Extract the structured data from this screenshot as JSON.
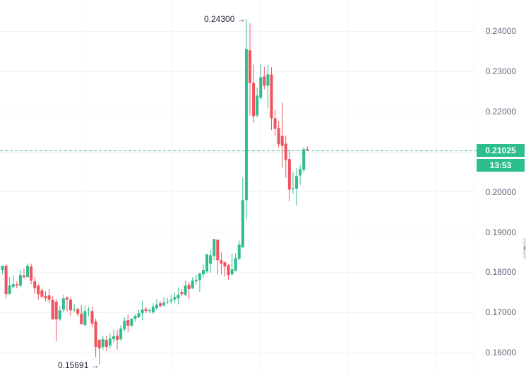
{
  "chart_data": {
    "type": "candlestick",
    "title": "",
    "xlabel": "",
    "ylabel": "",
    "ylim": [
      0.1547,
      0.2474
    ],
    "grid": true,
    "colors": {
      "up": "#2ebd8e",
      "down": "#f0525e",
      "grid": "#f2f3f5",
      "last_price_line": "#2ebd8e",
      "axis_text": "#5d6677"
    },
    "y_ticks": [
      0.24,
      0.23,
      0.22,
      0.2,
      0.19,
      0.18,
      0.17,
      0.16
    ],
    "y_tick_labels": [
      "0.24000",
      "0.23000",
      "0.22000",
      "0.20000",
      "0.19000",
      "0.18000",
      "0.17000",
      "0.16000"
    ],
    "annotations": {
      "high": {
        "label": "0.24300",
        "value": 0.243
      },
      "low": {
        "label": "0.15691",
        "value": 0.15691
      }
    },
    "last_price": {
      "label": "0.21025",
      "value": 0.21025,
      "countdown": "13:53"
    },
    "candles": [
      {
        "o": 0.18053,
        "h": 0.18158,
        "l": 0.17947,
        "c": 0.18158
      },
      {
        "o": 0.18158,
        "h": 0.18193,
        "l": 0.1735,
        "c": 0.17455
      },
      {
        "o": 0.17455,
        "h": 0.17877,
        "l": 0.17455,
        "c": 0.17666
      },
      {
        "o": 0.17631,
        "h": 0.17912,
        "l": 0.17596,
        "c": 0.17701
      },
      {
        "o": 0.17701,
        "h": 0.17771,
        "l": 0.17596,
        "c": 0.17666
      },
      {
        "o": 0.17666,
        "h": 0.18053,
        "l": 0.17631,
        "c": 0.1793
      },
      {
        "o": 0.17912,
        "h": 0.18088,
        "l": 0.17842,
        "c": 0.17877
      },
      {
        "o": 0.17877,
        "h": 0.18211,
        "l": 0.17877,
        "c": 0.18158
      },
      {
        "o": 0.18141,
        "h": 0.18211,
        "l": 0.17701,
        "c": 0.17789
      },
      {
        "o": 0.17771,
        "h": 0.17877,
        "l": 0.17455,
        "c": 0.17596
      },
      {
        "o": 0.17666,
        "h": 0.17701,
        "l": 0.17314,
        "c": 0.17455
      },
      {
        "o": 0.17543,
        "h": 0.17596,
        "l": 0.17384,
        "c": 0.17384
      },
      {
        "o": 0.17402,
        "h": 0.17525,
        "l": 0.17279,
        "c": 0.17349
      },
      {
        "o": 0.1742,
        "h": 0.17578,
        "l": 0.17226,
        "c": 0.17314
      },
      {
        "o": 0.17314,
        "h": 0.17402,
        "l": 0.16824,
        "c": 0.16824
      },
      {
        "o": 0.17262,
        "h": 0.17332,
        "l": 0.16279,
        "c": 0.16824
      },
      {
        "o": 0.16824,
        "h": 0.17156,
        "l": 0.16789,
        "c": 0.17051
      },
      {
        "o": 0.17068,
        "h": 0.17437,
        "l": 0.16998,
        "c": 0.17349
      },
      {
        "o": 0.17367,
        "h": 0.17402,
        "l": 0.17033,
        "c": 0.17314
      },
      {
        "o": 0.17314,
        "h": 0.17367,
        "l": 0.16911,
        "c": 0.17051
      },
      {
        "o": 0.17051,
        "h": 0.17209,
        "l": 0.16998,
        "c": 0.17068
      },
      {
        "o": 0.17086,
        "h": 0.17104,
        "l": 0.16894,
        "c": 0.16965
      },
      {
        "o": 0.16965,
        "h": 0.17174,
        "l": 0.16719,
        "c": 0.16701
      },
      {
        "o": 0.16684,
        "h": 0.17174,
        "l": 0.16649,
        "c": 0.17033
      },
      {
        "o": 0.17051,
        "h": 0.17139,
        "l": 0.16912,
        "c": 0.17068
      },
      {
        "o": 0.17033,
        "h": 0.17139,
        "l": 0.16631,
        "c": 0.16719
      },
      {
        "o": 0.16771,
        "h": 0.16842,
        "l": 0.15886,
        "c": 0.16139
      },
      {
        "o": 0.16315,
        "h": 0.16349,
        "l": 0.15691,
        "c": 0.16104
      },
      {
        "o": 0.16139,
        "h": 0.1642,
        "l": 0.16068,
        "c": 0.16332
      },
      {
        "o": 0.16315,
        "h": 0.1642,
        "l": 0.16033,
        "c": 0.16139
      },
      {
        "o": 0.16174,
        "h": 0.16473,
        "l": 0.16104,
        "c": 0.16349
      },
      {
        "o": 0.16332,
        "h": 0.16578,
        "l": 0.16244,
        "c": 0.16402
      },
      {
        "o": 0.1642,
        "h": 0.1656,
        "l": 0.16068,
        "c": 0.16315
      },
      {
        "o": 0.16332,
        "h": 0.16684,
        "l": 0.1628,
        "c": 0.16596
      },
      {
        "o": 0.16578,
        "h": 0.16877,
        "l": 0.16526,
        "c": 0.16789
      },
      {
        "o": 0.16807,
        "h": 0.16947,
        "l": 0.16508,
        "c": 0.16666
      },
      {
        "o": 0.16666,
        "h": 0.16842,
        "l": 0.16631,
        "c": 0.16842
      },
      {
        "o": 0.16842,
        "h": 0.16947,
        "l": 0.16772,
        "c": 0.16912
      },
      {
        "o": 0.16877,
        "h": 0.17068,
        "l": 0.16859,
        "c": 0.16982
      },
      {
        "o": 0.16982,
        "h": 0.17279,
        "l": 0.16807,
        "c": 0.17068
      },
      {
        "o": 0.17086,
        "h": 0.17139,
        "l": 0.16982,
        "c": 0.17033
      },
      {
        "o": 0.17033,
        "h": 0.17104,
        "l": 0.16982,
        "c": 0.17051
      },
      {
        "o": 0.16998,
        "h": 0.17226,
        "l": 0.16965,
        "c": 0.17139
      },
      {
        "o": 0.17104,
        "h": 0.17332,
        "l": 0.17051,
        "c": 0.17191
      },
      {
        "o": 0.17226,
        "h": 0.17279,
        "l": 0.17121,
        "c": 0.17156
      },
      {
        "o": 0.17174,
        "h": 0.17367,
        "l": 0.17139,
        "c": 0.17244
      },
      {
        "o": 0.17262,
        "h": 0.17367,
        "l": 0.17209,
        "c": 0.17262
      },
      {
        "o": 0.17279,
        "h": 0.17437,
        "l": 0.17209,
        "c": 0.17314
      },
      {
        "o": 0.17314,
        "h": 0.1749,
        "l": 0.17226,
        "c": 0.17384
      },
      {
        "o": 0.17349,
        "h": 0.17613,
        "l": 0.17191,
        "c": 0.17437
      },
      {
        "o": 0.17508,
        "h": 0.17578,
        "l": 0.17402,
        "c": 0.17455
      },
      {
        "o": 0.17437,
        "h": 0.17789,
        "l": 0.17402,
        "c": 0.17666
      },
      {
        "o": 0.17684,
        "h": 0.17754,
        "l": 0.17332,
        "c": 0.17578
      },
      {
        "o": 0.17596,
        "h": 0.17877,
        "l": 0.17578,
        "c": 0.17789
      },
      {
        "o": 0.17771,
        "h": 0.1793,
        "l": 0.17701,
        "c": 0.17807
      },
      {
        "o": 0.17807,
        "h": 0.17982,
        "l": 0.17508,
        "c": 0.17965
      },
      {
        "o": 0.17947,
        "h": 0.18193,
        "l": 0.17877,
        "c": 0.18053
      },
      {
        "o": 0.18018,
        "h": 0.18456,
        "l": 0.17965,
        "c": 0.18439
      },
      {
        "o": 0.18211,
        "h": 0.18544,
        "l": 0.17982,
        "c": 0.18421
      },
      {
        "o": 0.18404,
        "h": 0.18808,
        "l": 0.18299,
        "c": 0.18825
      },
      {
        "o": 0.18808,
        "h": 0.18684,
        "l": 0.17947,
        "c": 0.18298
      },
      {
        "o": 0.18298,
        "h": 0.18491,
        "l": 0.17947,
        "c": 0.18211
      },
      {
        "o": 0.18246,
        "h": 0.18263,
        "l": 0.17895,
        "c": 0.18141
      },
      {
        "o": 0.18176,
        "h": 0.18211,
        "l": 0.17807,
        "c": 0.1793
      },
      {
        "o": 0.17947,
        "h": 0.18457,
        "l": 0.17912,
        "c": 0.1807
      },
      {
        "o": 0.18035,
        "h": 0.18474,
        "l": 0.18018,
        "c": 0.18352
      },
      {
        "o": 0.18334,
        "h": 0.18791,
        "l": 0.18298,
        "c": 0.18685
      },
      {
        "o": 0.18614,
        "h": 0.20353,
        "l": 0.19486,
        "c": 0.19792
      },
      {
        "o": 0.19792,
        "h": 0.243,
        "l": 0.19317,
        "c": 0.23554
      },
      {
        "o": 0.23519,
        "h": 0.24195,
        "l": 0.219,
        "c": 0.2271
      },
      {
        "o": 0.2271,
        "h": 0.23167,
        "l": 0.21719,
        "c": 0.21884
      },
      {
        "o": 0.219,
        "h": 0.22596,
        "l": 0.21849,
        "c": 0.22393
      },
      {
        "o": 0.22341,
        "h": 0.23183,
        "l": 0.22289,
        "c": 0.22851
      },
      {
        "o": 0.22869,
        "h": 0.23113,
        "l": 0.22552,
        "c": 0.2264
      },
      {
        "o": 0.2264,
        "h": 0.23166,
        "l": 0.22078,
        "c": 0.22921
      },
      {
        "o": 0.22921,
        "h": 0.23097,
        "l": 0.21533,
        "c": 0.21832
      },
      {
        "o": 0.21832,
        "h": 0.22043,
        "l": 0.21393,
        "c": 0.21568
      },
      {
        "o": 0.21586,
        "h": 0.21762,
        "l": 0.21095,
        "c": 0.21181
      },
      {
        "o": 0.21393,
        "h": 0.22218,
        "l": 0.20611,
        "c": 0.21146
      },
      {
        "o": 0.21198,
        "h": 0.21393,
        "l": 0.20348,
        "c": 0.20795
      },
      {
        "o": 0.20812,
        "h": 0.21058,
        "l": 0.19769,
        "c": 0.20055
      },
      {
        "o": 0.20073,
        "h": 0.2048,
        "l": 0.19952,
        "c": 0.2009
      },
      {
        "o": 0.20073,
        "h": 0.20585,
        "l": 0.19655,
        "c": 0.20389
      },
      {
        "o": 0.20406,
        "h": 0.20669,
        "l": 0.20179,
        "c": 0.20564
      },
      {
        "o": 0.20547,
        "h": 0.21114,
        "l": 0.20481,
        "c": 0.21058
      },
      {
        "o": 0.21058,
        "h": 0.21128,
        "l": 0.21058,
        "c": 0.21025
      }
    ]
  }
}
